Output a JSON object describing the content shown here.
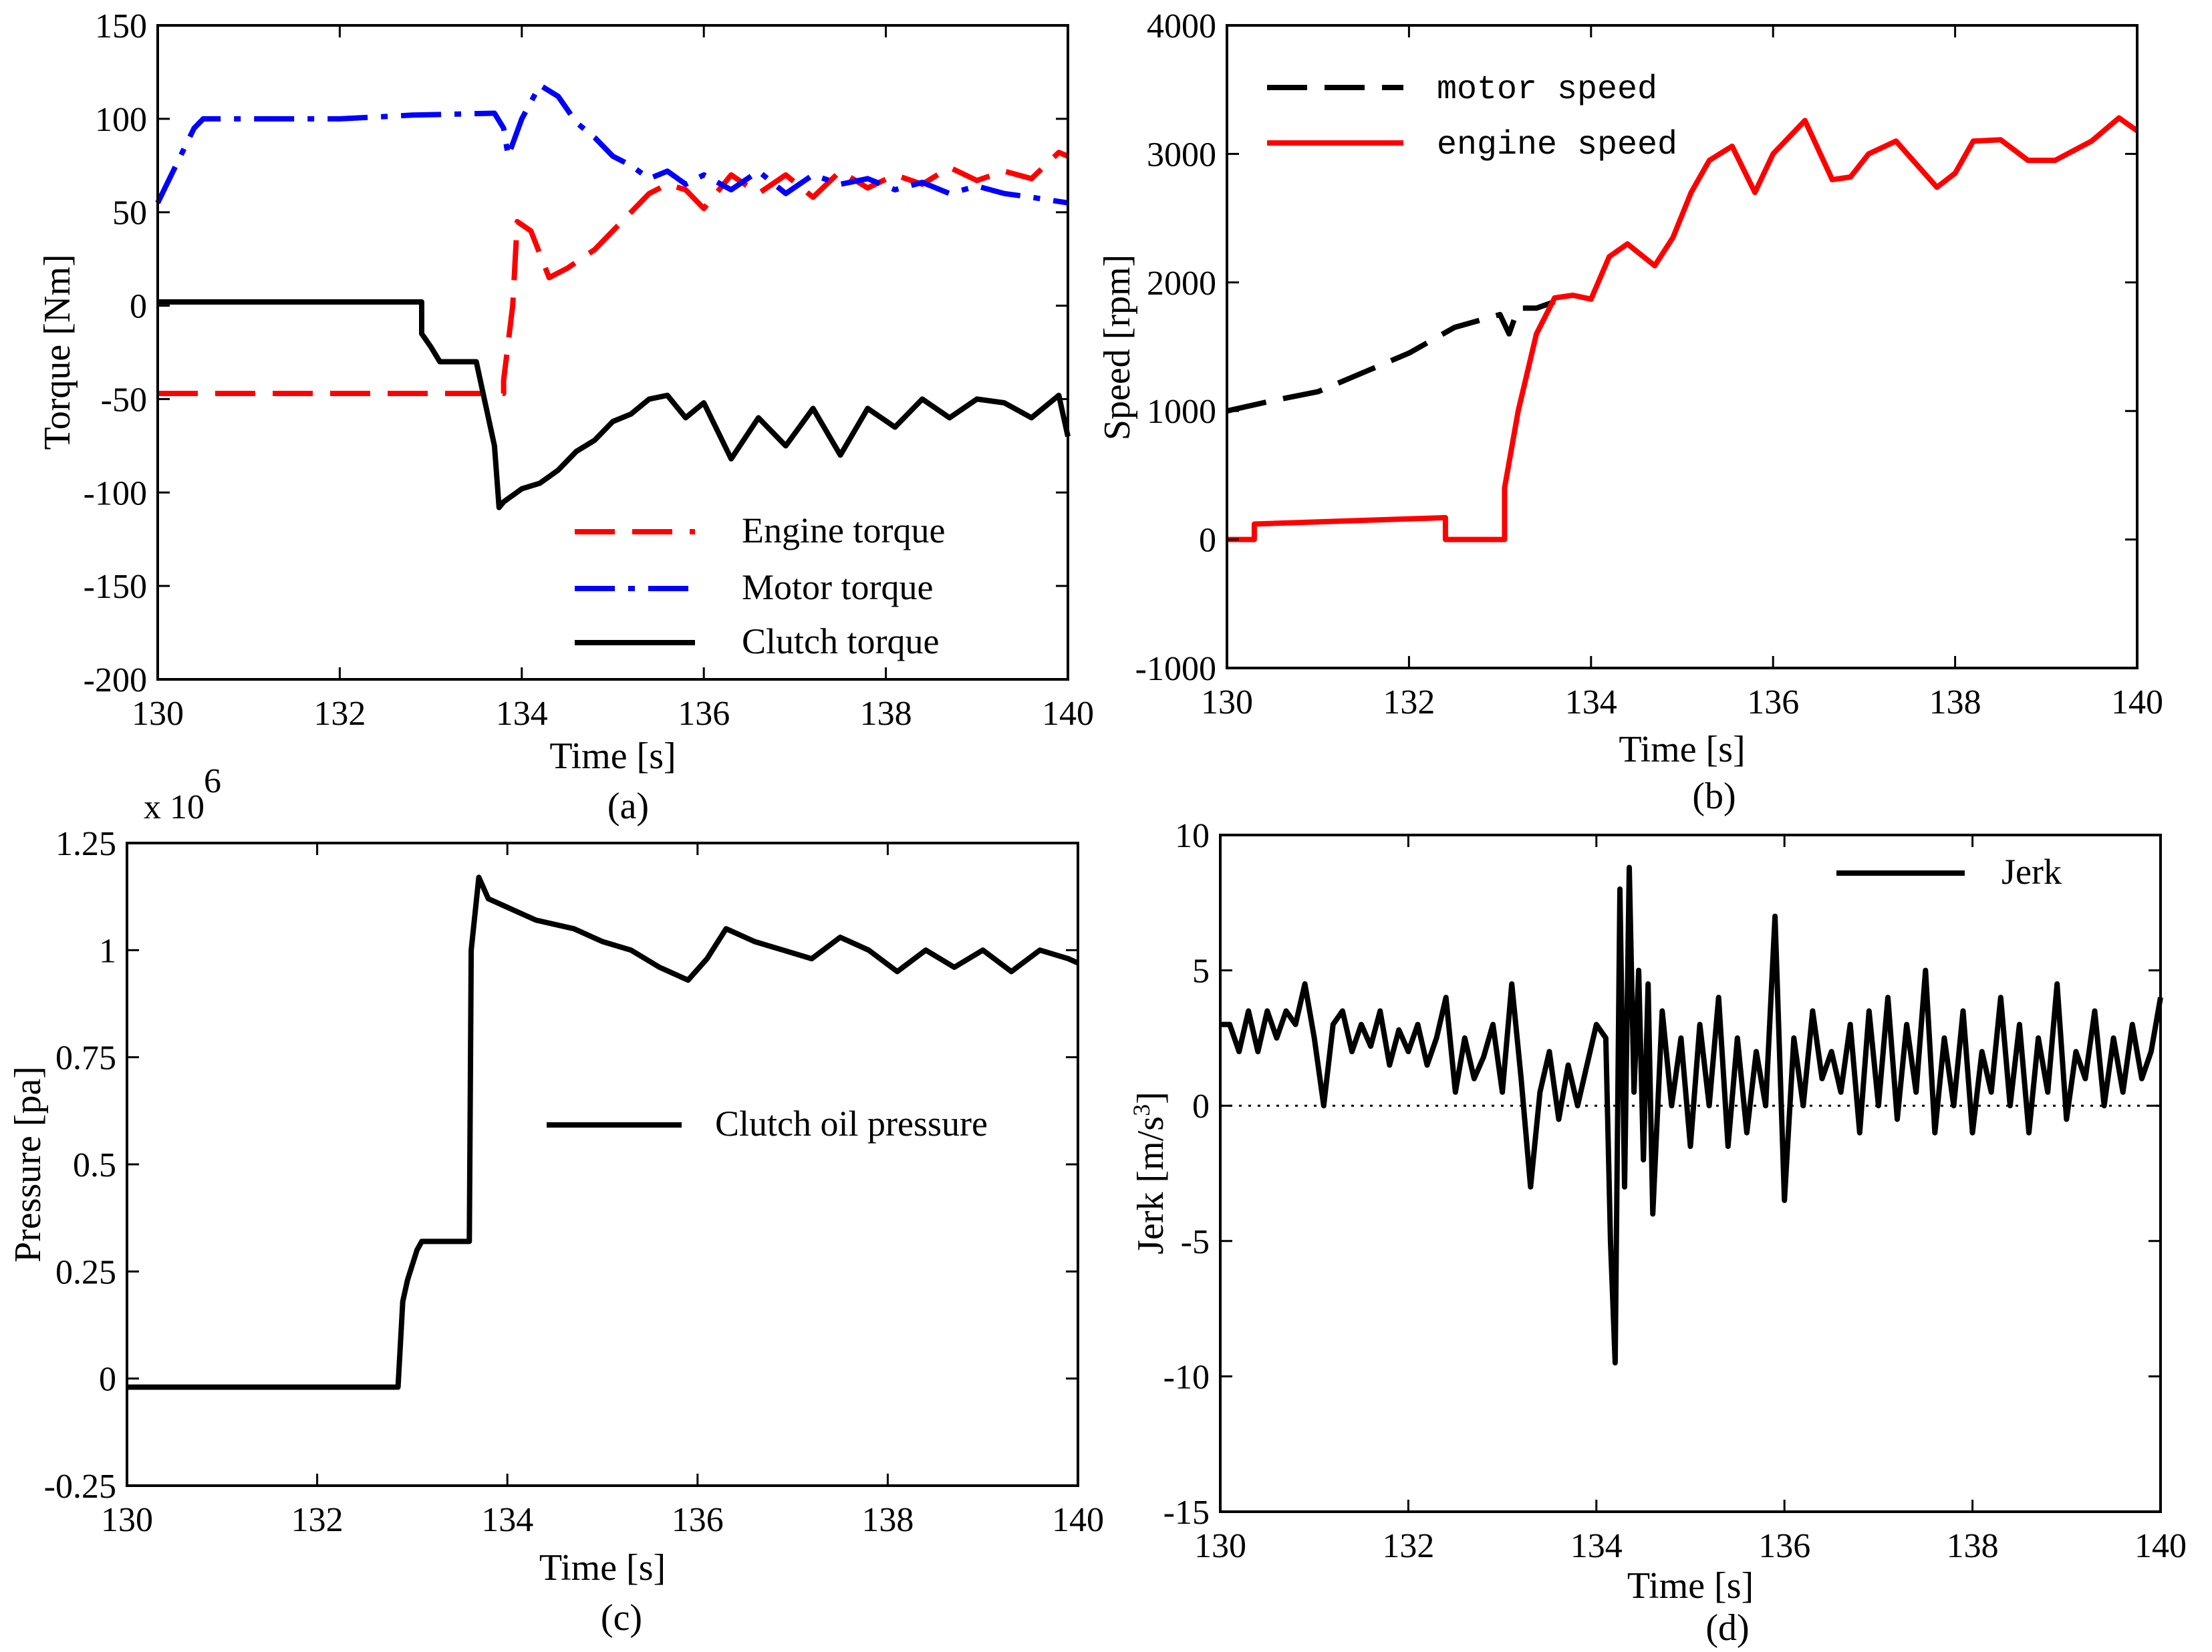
{
  "chart_data": [
    {
      "id": "a",
      "type": "line",
      "caption": "(a)",
      "xlabel": "Time [s]",
      "ylabel": "Torque [Nm]",
      "xlim": [
        130,
        140
      ],
      "ylim": [
        -200,
        150
      ],
      "xticks": [
        "130",
        "132",
        "134",
        "136",
        "138",
        "140"
      ],
      "yticks": [
        "-200",
        "-150",
        "-100",
        "-50",
        "0",
        "50",
        "100",
        "150"
      ],
      "xtick_values": [
        130,
        132,
        134,
        136,
        138,
        140
      ],
      "ytick_values": [
        -200,
        -150,
        -100,
        -50,
        0,
        50,
        100,
        150
      ],
      "legend_position": "bottom-right",
      "series": [
        {
          "name": "Engine torque",
          "color": "#ff0000",
          "style": "dashed",
          "x": [
            130,
            133.8,
            133.8,
            133.9,
            133.95,
            134.1,
            134.3,
            134.5,
            134.8,
            135.0,
            135.2,
            135.4,
            135.6,
            135.8,
            136.0,
            136.3,
            136.6,
            136.9,
            137.2,
            137.5,
            137.8,
            138.1,
            138.4,
            138.7,
            139.0,
            139.3,
            139.6,
            139.9,
            140
          ],
          "y": [
            -47,
            -47,
            -40,
            0,
            45,
            40,
            15,
            20,
            30,
            40,
            50,
            60,
            65,
            62,
            52,
            70,
            60,
            70,
            58,
            72,
            63,
            70,
            65,
            74,
            67,
            72,
            68,
            82,
            80
          ]
        },
        {
          "name": "Motor torque",
          "color": "#0000ff",
          "style": "dashdot",
          "x": [
            130,
            130.2,
            130.4,
            130.5,
            132.0,
            132.8,
            133.7,
            133.8,
            133.85,
            134.0,
            134.2,
            134.4,
            134.6,
            134.8,
            135.0,
            135.2,
            135.4,
            135.6,
            135.8,
            136.0,
            136.3,
            136.6,
            136.9,
            137.2,
            137.5,
            137.8,
            138.1,
            138.4,
            138.7,
            139.0,
            139.3,
            139.6,
            140
          ],
          "y": [
            55,
            75,
            95,
            100,
            100,
            102,
            103,
            95,
            80,
            100,
            118,
            112,
            98,
            90,
            80,
            75,
            68,
            72,
            65,
            70,
            62,
            72,
            60,
            70,
            65,
            68,
            62,
            66,
            60,
            64,
            60,
            58,
            55
          ]
        },
        {
          "name": "Clutch torque",
          "color": "#000000",
          "style": "solid",
          "x": [
            130,
            132.9,
            132.9,
            133.0,
            133.1,
            133.5,
            133.7,
            133.75,
            133.8,
            134.0,
            134.2,
            134.4,
            134.6,
            134.8,
            135.0,
            135.2,
            135.4,
            135.6,
            135.8,
            136.0,
            136.3,
            136.6,
            136.9,
            137.2,
            137.5,
            137.8,
            138.1,
            138.4,
            138.7,
            139.0,
            139.3,
            139.6,
            139.9,
            140
          ],
          "y": [
            2,
            2,
            -15,
            -22,
            -30,
            -30,
            -75,
            -108,
            -105,
            -98,
            -95,
            -88,
            -78,
            -72,
            -62,
            -58,
            -50,
            -48,
            -60,
            -52,
            -82,
            -60,
            -75,
            -55,
            -80,
            -55,
            -65,
            -50,
            -60,
            -50,
            -52,
            -60,
            -48,
            -70
          ]
        }
      ]
    },
    {
      "id": "b",
      "type": "line",
      "caption": "(b)",
      "xlabel": "Time [s]",
      "ylabel": "Speed [rpm]",
      "xlim": [
        130,
        140
      ],
      "ylim": [
        -1000,
        4000
      ],
      "xticks": [
        "130",
        "132",
        "134",
        "136",
        "138",
        "140"
      ],
      "yticks": [
        "-1000",
        "0",
        "1000",
        "2000",
        "3000",
        "4000"
      ],
      "xtick_values": [
        130,
        132,
        134,
        136,
        138,
        140
      ],
      "ytick_values": [
        -1000,
        0,
        1000,
        2000,
        3000,
        4000
      ],
      "legend_position": "top-left",
      "series": [
        {
          "name": "motor speed",
          "color": "#000000",
          "style": "dashed",
          "x": [
            130,
            130.5,
            131.0,
            131.5,
            132.0,
            132.5,
            133.0,
            133.1,
            133.2,
            133.4,
            133.6
          ],
          "y": [
            1000,
            1080,
            1150,
            1300,
            1450,
            1650,
            1750,
            1600,
            1800,
            1800,
            1850
          ]
        },
        {
          "name": "engine speed",
          "color": "#ff0000",
          "style": "solid",
          "x": [
            130,
            130.3,
            130.3,
            132.4,
            132.4,
            133.05,
            133.05,
            133.2,
            133.4,
            133.6,
            133.8,
            134.0,
            134.2,
            134.4,
            134.7,
            134.9,
            135.1,
            135.3,
            135.55,
            135.8,
            136.0,
            136.35,
            136.65,
            136.85,
            137.05,
            137.35,
            137.6,
            137.8,
            138.0,
            138.2,
            138.5,
            138.8,
            139.1,
            139.5,
            139.8,
            140
          ],
          "y": [
            0,
            0,
            120,
            170,
            0,
            0,
            400,
            1000,
            1600,
            1880,
            1900,
            1870,
            2200,
            2300,
            2130,
            2350,
            2700,
            2950,
            3060,
            2700,
            3000,
            3260,
            2800,
            2820,
            3000,
            3100,
            2900,
            2740,
            2850,
            3100,
            3110,
            2950,
            2950,
            3100,
            3280,
            3180
          ]
        }
      ]
    },
    {
      "id": "c",
      "type": "line",
      "caption": "(c)",
      "xlabel": "Time [s]",
      "ylabel": "Pressure [pa]",
      "multiplier": "x 10",
      "multiplier_exp": "6",
      "xlim": [
        130,
        140
      ],
      "ylim": [
        -0.25,
        1.25
      ],
      "xticks": [
        "130",
        "132",
        "134",
        "136",
        "138",
        "140"
      ],
      "yticks": [
        "-0.25",
        "0",
        "0.25",
        "0.5",
        "0.75",
        "1",
        "1.25"
      ],
      "xtick_values": [
        130,
        132,
        134,
        136,
        138,
        140
      ],
      "ytick_values": [
        -0.25,
        0,
        0.25,
        0.5,
        0.75,
        1,
        1.25
      ],
      "legend_position": "middle-right",
      "series": [
        {
          "name": "Clutch oil pressure",
          "color": "#000000",
          "style": "solid",
          "x": [
            130,
            132.85,
            132.9,
            132.95,
            133.05,
            133.1,
            133.6,
            133.62,
            133.7,
            133.8,
            134.0,
            134.3,
            134.7,
            135.0,
            135.3,
            135.6,
            135.9,
            136.1,
            136.3,
            136.6,
            136.9,
            137.2,
            137.5,
            137.8,
            138.1,
            138.4,
            138.7,
            139.0,
            139.3,
            139.6,
            139.9,
            140
          ],
          "y": [
            -0.02,
            -0.02,
            0.18,
            0.23,
            0.3,
            0.32,
            0.32,
            1.0,
            1.17,
            1.12,
            1.1,
            1.07,
            1.05,
            1.02,
            1.0,
            0.96,
            0.93,
            0.98,
            1.05,
            1.02,
            1.0,
            0.98,
            1.03,
            1.0,
            0.95,
            1.0,
            0.96,
            1.0,
            0.95,
            1.0,
            0.98,
            0.97
          ]
        }
      ]
    },
    {
      "id": "d",
      "type": "line",
      "caption": "(d)",
      "xlabel": "Time [s]",
      "ylabel": "Jerk [m/s",
      "ylabel_sup": "3",
      "ylabel_end": "]",
      "xlim": [
        130,
        140
      ],
      "ylim": [
        -15,
        10
      ],
      "xticks": [
        "130",
        "132",
        "134",
        "136",
        "138",
        "140"
      ],
      "yticks": [
        "-15",
        "-10",
        "-5",
        "0",
        "5",
        "10"
      ],
      "xtick_values": [
        130,
        132,
        134,
        136,
        138,
        140
      ],
      "ytick_values": [
        -15,
        -10,
        -5,
        0,
        5,
        10
      ],
      "legend_position": "top-right",
      "series": [
        {
          "name": "Jerk",
          "color": "#000000",
          "style": "solid",
          "x": [
            130,
            130.1,
            130.2,
            130.3,
            130.4,
            130.5,
            130.6,
            130.7,
            130.8,
            130.9,
            131.0,
            131.1,
            131.2,
            131.3,
            131.4,
            131.5,
            131.6,
            131.7,
            131.8,
            131.9,
            132.0,
            132.1,
            132.2,
            132.3,
            132.4,
            132.5,
            132.6,
            132.7,
            132.8,
            132.9,
            133.0,
            133.1,
            133.2,
            133.3,
            133.4,
            133.5,
            133.6,
            133.7,
            133.8,
            133.9,
            134.0,
            134.1,
            134.15,
            134.2,
            134.25,
            134.3,
            134.35,
            134.4,
            134.45,
            134.5,
            134.55,
            134.6,
            134.7,
            134.8,
            134.9,
            135.0,
            135.1,
            135.2,
            135.3,
            135.4,
            135.5,
            135.6,
            135.7,
            135.8,
            135.9,
            136.0,
            136.1,
            136.2,
            136.3,
            136.4,
            136.5,
            136.6,
            136.7,
            136.8,
            136.9,
            137.0,
            137.1,
            137.2,
            137.3,
            137.4,
            137.5,
            137.6,
            137.7,
            137.8,
            137.9,
            138.0,
            138.1,
            138.2,
            138.3,
            138.4,
            138.5,
            138.6,
            138.7,
            138.8,
            138.9,
            139.0,
            139.1,
            139.2,
            139.3,
            139.4,
            139.5,
            139.6,
            139.7,
            139.8,
            139.9,
            140
          ],
          "y": [
            3,
            3,
            2,
            3.5,
            2,
            3.5,
            2.5,
            3.5,
            3,
            4.5,
            2.5,
            0,
            3,
            3.5,
            2,
            3,
            2.2,
            3.5,
            1.5,
            2.8,
            2,
            3,
            1.5,
            2.5,
            4,
            0.5,
            2.5,
            1,
            1.8,
            3,
            0.5,
            4.5,
            1,
            -3,
            0.5,
            2,
            -0.5,
            1.5,
            0,
            1.5,
            3,
            2.5,
            -5,
            -9.5,
            8,
            -3,
            8.8,
            0.5,
            5,
            -2,
            4.5,
            -4,
            3.5,
            0,
            2.5,
            -1.5,
            3,
            0,
            4,
            -1.5,
            2.5,
            -1,
            2,
            0,
            7,
            -3.5,
            2.5,
            0,
            3.5,
            1,
            2,
            0.5,
            3,
            -1,
            3.5,
            0,
            4,
            -0.5,
            3,
            0.5,
            5,
            -1,
            2.5,
            0,
            3.5,
            -1,
            2,
            0.5,
            4,
            0,
            3,
            -1,
            2.5,
            0.5,
            4.5,
            -0.5,
            2,
            1,
            3.5,
            0,
            2.5,
            0.5,
            3,
            1,
            2,
            4
          ]
        }
      ]
    }
  ]
}
